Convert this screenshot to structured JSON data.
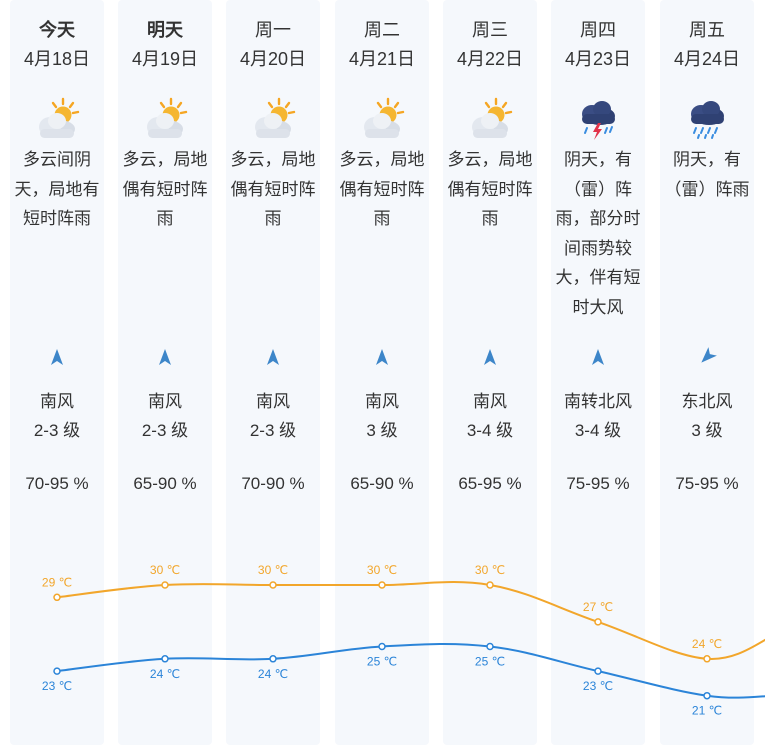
{
  "days": [
    {
      "weekday": "今天",
      "date": "4月18日",
      "icon": "partly-cloudy-sun-icon",
      "desc": "多云间阴天，局地有短时阵雨",
      "wind_dir": "南风",
      "wind_level": "2-3 级",
      "wind_arrow": "north-arrow-icon",
      "humidity": "70-95 %",
      "high": 29,
      "low": 23,
      "high_label": "29 ℃",
      "low_label": "23 ℃"
    },
    {
      "weekday": "明天",
      "date": "4月19日",
      "icon": "partly-cloudy-sun-icon",
      "desc": "多云，局地偶有短时阵雨",
      "wind_dir": "南风",
      "wind_level": "2-3 级",
      "wind_arrow": "north-arrow-icon",
      "humidity": "65-90 %",
      "high": 30,
      "low": 24,
      "high_label": "30 ℃",
      "low_label": "24 ℃"
    },
    {
      "weekday": "周一",
      "date": "4月20日",
      "icon": "partly-cloudy-sun-icon",
      "desc": "多云，局地偶有短时阵雨",
      "wind_dir": "南风",
      "wind_level": "2-3 级",
      "wind_arrow": "north-arrow-icon",
      "humidity": "70-90 %",
      "high": 30,
      "low": 24,
      "high_label": "30 ℃",
      "low_label": "24 ℃"
    },
    {
      "weekday": "周二",
      "date": "4月21日",
      "icon": "partly-cloudy-sun-icon",
      "desc": "多云，局地偶有短时阵雨",
      "wind_dir": "南风",
      "wind_level": "3 级",
      "wind_arrow": "north-arrow-icon",
      "humidity": "65-90 %",
      "high": 30,
      "low": 25,
      "high_label": "30 ℃",
      "low_label": "25 ℃"
    },
    {
      "weekday": "周三",
      "date": "4月22日",
      "icon": "partly-cloudy-sun-icon",
      "desc": "多云，局地偶有短时阵雨",
      "wind_dir": "南风",
      "wind_level": "3-4 级",
      "wind_arrow": "north-arrow-icon",
      "humidity": "65-95 %",
      "high": 30,
      "low": 25,
      "high_label": "30 ℃",
      "low_label": "25 ℃"
    },
    {
      "weekday": "周四",
      "date": "4月23日",
      "icon": "thunderstorm-icon",
      "desc": "阴天，有（雷）阵雨，部分时间雨势较大，伴有短时大风",
      "wind_dir": "南转北风",
      "wind_level": "3-4 级",
      "wind_arrow": "north-arrow-icon",
      "humidity": "75-95 %",
      "high": 27,
      "low": 23,
      "high_label": "27 ℃",
      "low_label": "23 ℃"
    },
    {
      "weekday": "周五",
      "date": "4月24日",
      "icon": "rain-cloud-icon",
      "desc": "阴天，有（雷）阵雨",
      "wind_dir": "东北风",
      "wind_level": "3 级",
      "wind_arrow": "southwest-arrow-icon",
      "humidity": "75-95 %",
      "high": 24,
      "low": 21,
      "high_label": "24 ℃",
      "low_label": "21 ℃"
    }
  ],
  "colors": {
    "high_line": "#f2a62b",
    "low_line": "#2b84d8",
    "column_bg": "#f5f8fc",
    "arrow": "#3d86c9"
  },
  "chart_data": {
    "type": "line",
    "categories": [
      "4月18日",
      "4月19日",
      "4月20日",
      "4月21日",
      "4月22日",
      "4月23日",
      "4月24日"
    ],
    "series": [
      {
        "values": [
          29,
          30,
          30,
          30,
          30,
          27,
          24
        ]
      },
      {
        "values": [
          23,
          24,
          24,
          25,
          25,
          23,
          21
        ]
      }
    ],
    "ylabel": "",
    "grid": false
  }
}
